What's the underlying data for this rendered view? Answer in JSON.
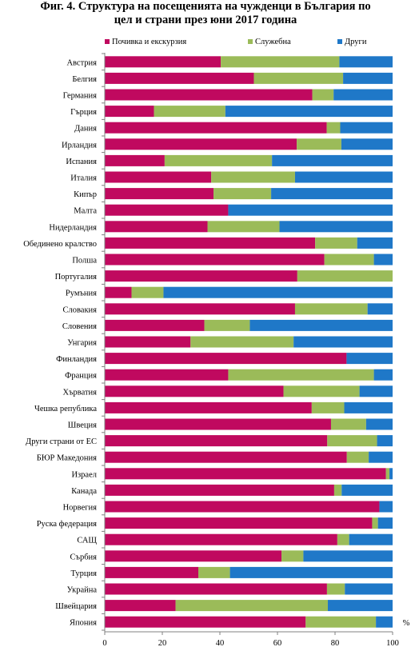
{
  "title_line1": "Фиг. 4. Структура на посещенията на чужденци в България по",
  "title_line2": "цел и страни през юни 2017 година",
  "chart_data": {
    "type": "bar",
    "orientation": "horizontal",
    "stacked": true,
    "categories": [
      "Австрия",
      "Белгия",
      "Германия",
      "Гърция",
      "Дания",
      "Ирландия",
      "Испания",
      "Италия",
      "Кипър",
      "Малта",
      "Нидерландия",
      "Обединено кралство",
      "Полша",
      "Португалия",
      "Румъния",
      "Словакия",
      "Словения",
      "Унгария",
      "Финландия",
      "Франция",
      "Хърватия",
      "Чешка република",
      "Швеция",
      "Други страни от ЕС",
      "БЮР Македония",
      "Израел",
      "Канада",
      "Норвегия",
      "Руска федерация",
      "САЩ",
      "Сърбия",
      "Турция",
      "Украйна",
      "Швейцария",
      "Япония"
    ],
    "series": [
      {
        "name": "Почивка и екскурзия",
        "color": "#c0095f",
        "values": [
          40.3,
          51.8,
          72.1,
          17.1,
          77.1,
          66.7,
          20.8,
          37.0,
          37.8,
          42.9,
          35.7,
          73.1,
          76.3,
          66.9,
          9.3,
          66.1,
          34.6,
          29.8,
          84.0,
          42.9,
          62.1,
          71.9,
          78.6,
          77.3,
          84.1,
          97.7,
          79.7,
          95.4,
          92.9,
          80.8,
          61.4,
          32.5,
          77.2,
          24.6,
          69.8
        ]
      },
      {
        "name": "Служебна",
        "color": "#9bbb59",
        "values": [
          41.2,
          31.0,
          7.4,
          24.8,
          4.7,
          15.5,
          37.3,
          29.1,
          20.0,
          0.0,
          25.0,
          14.6,
          17.2,
          33.1,
          11.1,
          25.2,
          15.8,
          35.8,
          0.0,
          50.6,
          26.4,
          11.3,
          12.2,
          17.3,
          7.6,
          1.2,
          2.6,
          0.0,
          2.0,
          4.1,
          7.6,
          11.0,
          6.2,
          52.9,
          24.4
        ]
      },
      {
        "name": "Други",
        "color": "#1f78c8",
        "values": [
          18.5,
          17.2,
          20.5,
          58.1,
          18.2,
          17.8,
          41.9,
          33.9,
          42.2,
          57.1,
          39.3,
          12.3,
          6.5,
          0.0,
          79.6,
          8.7,
          49.6,
          34.4,
          16.0,
          6.5,
          11.5,
          16.8,
          9.2,
          5.4,
          8.3,
          1.1,
          17.7,
          4.6,
          5.1,
          15.1,
          31.0,
          56.5,
          16.6,
          22.5,
          5.8
        ]
      }
    ],
    "x_ticks": [
      "0",
      "20",
      "40",
      "60",
      "80",
      "100"
    ],
    "xlim": [
      0,
      100
    ],
    "x_unit": "%",
    "legend_position": "top",
    "grid": false
  }
}
